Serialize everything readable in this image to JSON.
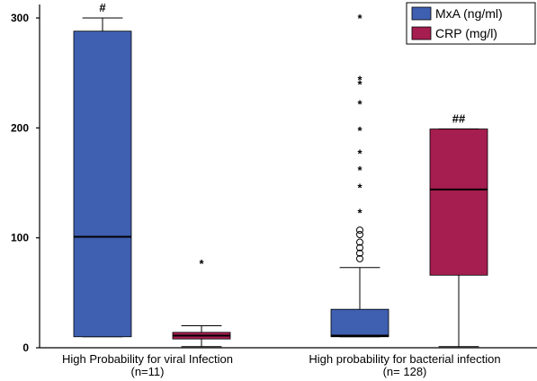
{
  "chart_data": {
    "type": "boxplot",
    "ylim": [
      0,
      300
    ],
    "yticks": [
      "0",
      "100",
      "200",
      "300"
    ],
    "categories": [
      {
        "line1": "High Probability for viral Infection",
        "line2": "(n=11)"
      },
      {
        "line1": "High probability for bacterial infection",
        "line2": "(n= 128)"
      }
    ],
    "series": [
      {
        "name": "MxA (ng/ml)",
        "color": "#3F5FB0",
        "boxes": [
          {
            "whisker_low": 10,
            "q1": 10,
            "median": 101,
            "q3": 288,
            "whisker_high": 300,
            "outliers_circle": [],
            "outliers_star": [],
            "annotation": "#"
          },
          {
            "whisker_low": 10,
            "q1": 10,
            "median": 11,
            "q3": 35,
            "whisker_high": 73,
            "outliers_circle": [
              81,
              86,
              91,
              96,
              103,
              107
            ],
            "outliers_star": [
              123,
              146,
              162,
              177,
              198,
              222,
              240,
              244,
              300
            ],
            "annotation": ""
          }
        ]
      },
      {
        "name": "CRP (mg/l)",
        "color": "#A61D4F",
        "boxes": [
          {
            "whisker_low": 1,
            "q1": 8,
            "median": 11,
            "q3": 14,
            "whisker_high": 20,
            "outliers_circle": [],
            "outliers_star": [
              77
            ],
            "annotation": ""
          },
          {
            "whisker_low": 1,
            "q1": 66,
            "median": 144,
            "q3": 199,
            "whisker_high": 199,
            "outliers_circle": [],
            "outliers_star": [],
            "annotation": "##"
          }
        ]
      }
    ],
    "legend": "top-right",
    "grid": false
  }
}
